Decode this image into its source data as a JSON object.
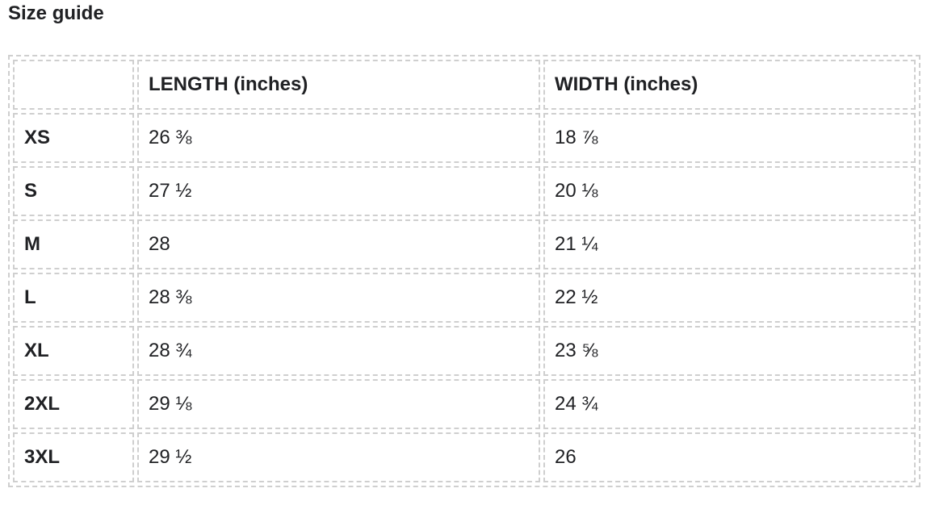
{
  "title": "Size guide",
  "headers": [
    "",
    "LENGTH (inches)",
    "WIDTH (inches)"
  ],
  "rows": [
    [
      "XS",
      "26 ⅜",
      "18 ⅞"
    ],
    [
      "S",
      "27 ½",
      "20 ⅛"
    ],
    [
      "M",
      "28",
      "21 ¼"
    ],
    [
      "L",
      "28 ⅜",
      "22 ½"
    ],
    [
      "XL",
      "28 ¾",
      "23 ⅝"
    ],
    [
      "2XL",
      "29 ⅛",
      "24 ¾"
    ],
    [
      "3XL",
      "29 ½",
      "26"
    ]
  ]
}
